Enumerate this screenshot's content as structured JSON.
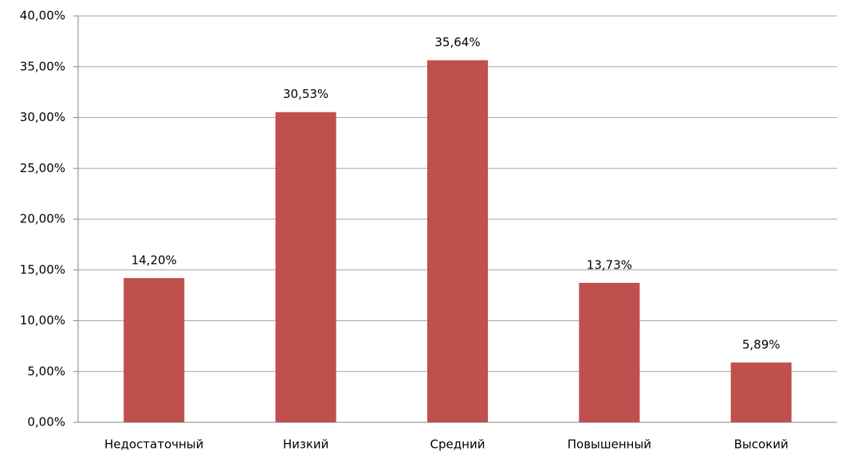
{
  "chart_data": {
    "type": "bar",
    "categories": [
      "Недостаточный",
      "Низкий",
      "Средний",
      "Повышенный",
      "Высокий"
    ],
    "values": [
      14.2,
      30.53,
      35.64,
      13.73,
      5.89
    ],
    "value_labels": [
      "14,20%",
      "30,53%",
      "35,64%",
      "13,73%",
      "5,89%"
    ],
    "color": "#c0504d",
    "ylim": [
      0,
      40
    ],
    "yticks": [
      {
        "value": 0,
        "label": "0,00%"
      },
      {
        "value": 5,
        "label": "5,00%"
      },
      {
        "value": 10,
        "label": "10,00%"
      },
      {
        "value": 15,
        "label": "15,00%"
      },
      {
        "value": 20,
        "label": "20,00%"
      },
      {
        "value": 25,
        "label": "25,00%"
      },
      {
        "value": 30,
        "label": "30,00%"
      },
      {
        "value": 35,
        "label": "35,00%"
      },
      {
        "value": 40,
        "label": "40,00%"
      }
    ],
    "grid": true
  }
}
